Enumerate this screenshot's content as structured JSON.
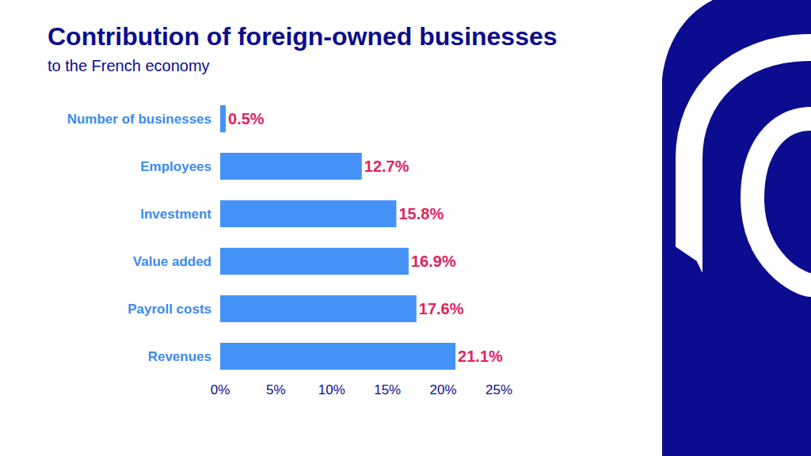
{
  "chart_data": {
    "type": "bar",
    "orientation": "horizontal",
    "title": "Contribution of foreign-owned businesses",
    "subtitle": "to the French economy",
    "categories": [
      "Number of businesses",
      "Employees",
      "Investment",
      "Value added",
      "Payroll costs",
      "Revenues"
    ],
    "values": [
      0.5,
      12.7,
      15.8,
      16.9,
      17.6,
      21.1
    ],
    "value_labels": [
      "0.5%",
      "12.7%",
      "15.8%",
      "16.9%",
      "17.6%",
      "21.1%"
    ],
    "data_labels": true,
    "color": "#4592f7",
    "xlim": [
      0,
      25
    ],
    "xticks": [
      {
        "value": 0,
        "label": "0%"
      },
      {
        "value": 5,
        "label": "5%"
      },
      {
        "value": 10,
        "label": "10%"
      },
      {
        "value": 15,
        "label": "15%"
      },
      {
        "value": 20,
        "label": "20%"
      },
      {
        "value": 25,
        "label": "25%"
      }
    ],
    "grid": false
  }
}
